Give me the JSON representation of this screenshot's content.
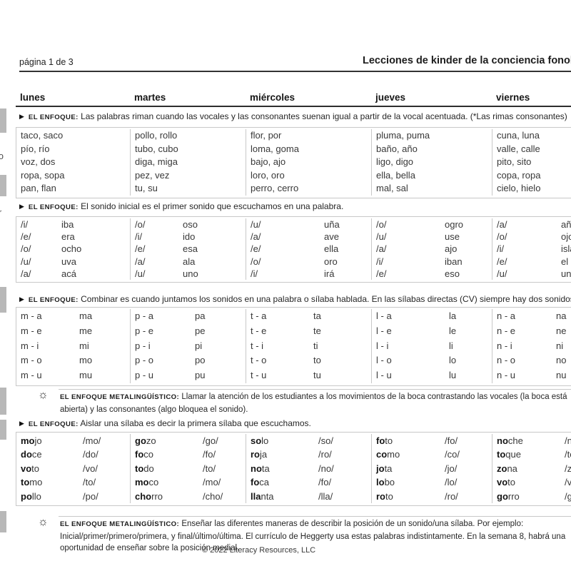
{
  "page": {
    "page_label": "página 1 de 3",
    "title": "Lecciones de kinder de la conciencia fonológica",
    "footer": "© 2022 Literacy Resources, LLC"
  },
  "icons": {
    "focus_marker": "▶",
    "metalinguistic_sun": "☼"
  },
  "margin_fragments": [
    "o",
    "r"
  ],
  "days": [
    "lunes",
    "martes",
    "miércoles",
    "jueves",
    "viernes"
  ],
  "sections": [
    {
      "focus_label": "EL ENFOQUE:",
      "focus_text": "Las palabras riman cuando las vocales y las consonantes suenan igual a partir de la vocal acentuada. (*Las rimas consonantes)",
      "layout": "pairs",
      "columns": [
        [
          "taco, saco",
          "pío, río",
          "voz, dos",
          "ropa, sopa",
          "pan, flan"
        ],
        [
          "pollo, rollo",
          "tubo, cubo",
          "diga, miga",
          "pez, vez",
          "tu, su"
        ],
        [
          "flor, por",
          "loma, goma",
          "bajo, ajo",
          "loro, oro",
          "perro, cerro"
        ],
        [
          "pluma, puma",
          "baño, año",
          "ligo, digo",
          "ella, bella",
          "mal, sal"
        ],
        [
          "cuna, luna",
          "valle, calle",
          "pito, sito",
          "copa, ropa",
          "cielo, hielo"
        ]
      ]
    },
    {
      "focus_label": "EL ENFOQUE:",
      "focus_text": "El sonido inicial es el primer sonido que escuchamos en una palabra.",
      "layout": "duo",
      "columns": [
        [
          [
            "/i/",
            "iba"
          ],
          [
            "/e/",
            "era"
          ],
          [
            "/o/",
            "ocho"
          ],
          [
            "/u/",
            "uva"
          ],
          [
            "/a/",
            "acá"
          ]
        ],
        [
          [
            "/o/",
            "oso"
          ],
          [
            "/i/",
            "ido"
          ],
          [
            "/e/",
            "esa"
          ],
          [
            "/a/",
            "ala"
          ],
          [
            "/u/",
            "uno"
          ]
        ],
        [
          [
            "/u/",
            "uña"
          ],
          [
            "/a/",
            "ave"
          ],
          [
            "/e/",
            "ella"
          ],
          [
            "/o/",
            "oro"
          ],
          [
            "/i/",
            "irá"
          ]
        ],
        [
          [
            "/o/",
            "ogro"
          ],
          [
            "/u/",
            "use"
          ],
          [
            "/a/",
            "ajo"
          ],
          [
            "/i/",
            "iban"
          ],
          [
            "/e/",
            "eso"
          ]
        ],
        [
          [
            "/a/",
            "año"
          ],
          [
            "/o/",
            "ojo"
          ],
          [
            "/i/",
            "isla"
          ],
          [
            "/e/",
            "el"
          ],
          [
            "/u/",
            "una"
          ]
        ]
      ]
    },
    {
      "focus_label": "EL ENFOQUE:",
      "focus_text": "Combinar es cuando juntamos los sonidos en una palabra o sílaba hablada. En las sílabas directas (CV) siempre hay dos sonidos.",
      "layout": "duo",
      "columns": [
        [
          [
            "m - a",
            "ma"
          ],
          [
            "m - e",
            "me"
          ],
          [
            "m - i",
            "mi"
          ],
          [
            "m - o",
            "mo"
          ],
          [
            "m - u",
            "mu"
          ]
        ],
        [
          [
            "p - a",
            "pa"
          ],
          [
            "p - e",
            "pe"
          ],
          [
            "p - i",
            "pi"
          ],
          [
            "p - o",
            "po"
          ],
          [
            "p - u",
            "pu"
          ]
        ],
        [
          [
            "t - a",
            "ta"
          ],
          [
            "t - e",
            "te"
          ],
          [
            "t - i",
            "ti"
          ],
          [
            "t - o",
            "to"
          ],
          [
            "t - u",
            "tu"
          ]
        ],
        [
          [
            "l - a",
            "la"
          ],
          [
            "l - e",
            "le"
          ],
          [
            "l - i",
            "li"
          ],
          [
            "l - o",
            "lo"
          ],
          [
            "l - u",
            "lu"
          ]
        ],
        [
          [
            "n - a",
            "na"
          ],
          [
            "n - e",
            "ne"
          ],
          [
            "n - i",
            "ni"
          ],
          [
            "n - o",
            "no"
          ],
          [
            "n - u",
            "nu"
          ]
        ]
      ]
    },
    {
      "focus_label": "EL ENFOQUE:",
      "focus_text": "Aislar una sílaba es decir la primera sílaba que escuchamos.",
      "layout": "syl",
      "columns": [
        [
          {
            "b": "mo",
            "r": "jo",
            "s": "/mo/"
          },
          {
            "b": "do",
            "r": "ce",
            "s": "/do/"
          },
          {
            "b": "vo",
            "r": "to",
            "s": "/vo/"
          },
          {
            "b": "to",
            "r": "mo",
            "s": "/to/"
          },
          {
            "b": "po",
            "r": "llo",
            "s": "/po/"
          }
        ],
        [
          {
            "b": "go",
            "r": "zo",
            "s": "/go/"
          },
          {
            "b": "fo",
            "r": "co",
            "s": "/fo/"
          },
          {
            "b": "to",
            "r": "do",
            "s": "/to/"
          },
          {
            "b": "mo",
            "r": "co",
            "s": "/mo/"
          },
          {
            "b": "cho",
            "r": "rro",
            "s": "/cho/"
          }
        ],
        [
          {
            "b": "so",
            "r": "lo",
            "s": "/so/"
          },
          {
            "b": "ro",
            "r": "ja",
            "s": "/ro/"
          },
          {
            "b": "no",
            "r": "ta",
            "s": "/no/"
          },
          {
            "b": "fo",
            "r": "ca",
            "s": "/fo/"
          },
          {
            "b": "lla",
            "r": "nta",
            "s": "/lla/"
          }
        ],
        [
          {
            "b": "fo",
            "r": "to",
            "s": "/fo/"
          },
          {
            "b": "co",
            "r": "mo",
            "s": "/co/"
          },
          {
            "b": "jo",
            "r": "ta",
            "s": "/jo/"
          },
          {
            "b": "lo",
            "r": "bo",
            "s": "/lo/"
          },
          {
            "b": "ro",
            "r": "to",
            "s": "/ro/"
          }
        ],
        [
          {
            "b": "no",
            "r": "che",
            "s": "/no/"
          },
          {
            "b": "to",
            "r": "que",
            "s": "/to/"
          },
          {
            "b": "zo",
            "r": "na",
            "s": "/zo/"
          },
          {
            "b": "vo",
            "r": "to",
            "s": "/vo/"
          },
          {
            "b": "go",
            "r": "rro",
            "s": "/go/"
          }
        ]
      ]
    }
  ],
  "notes": [
    {
      "label": "EL ENFOQUE METALINGÜÍSTICO:",
      "text": "Llamar la atención de los estudiantes a los movimientos de la boca contrastando las vocales (la boca está abierta) y las consonantes (algo bloquea el sonido)."
    },
    {
      "label": "EL ENFOQUE METALINGÜÍSTICO:",
      "text": "Enseñar las diferentes maneras de describir la posición de un sonido/una sílaba. Por ejemplo: Inicial/primer/primero/primera, y final/último/última. El currículo de Heggerty usa estas palabras indistintamente. En la semana 8, habrá una oportunidad de enseñar sobre la posición medial."
    }
  ]
}
